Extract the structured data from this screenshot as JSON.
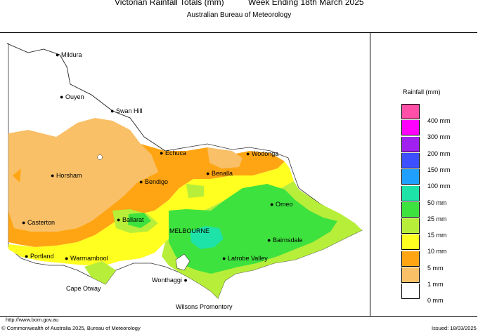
{
  "header": {
    "title_left": "Victorian Rainfall Totals (mm)",
    "title_right": "Week Ending 18th March 2025",
    "subtitle": "Australian Bureau of Meteorology"
  },
  "places": [
    {
      "name": "Mildura"
    },
    {
      "name": "Ouyen"
    },
    {
      "name": "Swan Hill"
    },
    {
      "name": "Echuca"
    },
    {
      "name": "Wodonga"
    },
    {
      "name": "Horsham"
    },
    {
      "name": "Bendigo"
    },
    {
      "name": "Benalla"
    },
    {
      "name": "Omeo"
    },
    {
      "name": "Ballarat"
    },
    {
      "name": "Casterton"
    },
    {
      "name": "MELBOURNE"
    },
    {
      "name": "Bairnsdale"
    },
    {
      "name": "Portland"
    },
    {
      "name": "Warrnambool"
    },
    {
      "name": "Latrobe Valley"
    },
    {
      "name": "Wonthaggi"
    },
    {
      "name": "Cape Otway"
    },
    {
      "name": "Wilsons Promontory"
    }
  ],
  "legend": {
    "title": "Rainfall (mm)",
    "items": [
      {
        "label": "400 mm",
        "color": "#ff4fa7"
      },
      {
        "label": "300 mm",
        "color": "#ff00ff"
      },
      {
        "label": "200 mm",
        "color": "#a020f0"
      },
      {
        "label": "150 mm",
        "color": "#3c50ff"
      },
      {
        "label": "100 mm",
        "color": "#1fa0ff"
      },
      {
        "label": "50 mm",
        "color": "#1ee3a8"
      },
      {
        "label": "25 mm",
        "color": "#3ee23e"
      },
      {
        "label": "15 mm",
        "color": "#b7ee3a"
      },
      {
        "label": "10 mm",
        "color": "#ffff20"
      },
      {
        "label": "5 mm",
        "color": "#ffa513"
      },
      {
        "label": "1 mm",
        "color": "#f9c068"
      },
      {
        "label": "0 mm",
        "color": "#ffffff"
      }
    ]
  },
  "footer": {
    "url": "http://www.bom.gov.au",
    "copyright": "© Commonwealth of Australia 2025, Bureau of Meteorology",
    "issued": "Issued: 18/03/2025"
  }
}
